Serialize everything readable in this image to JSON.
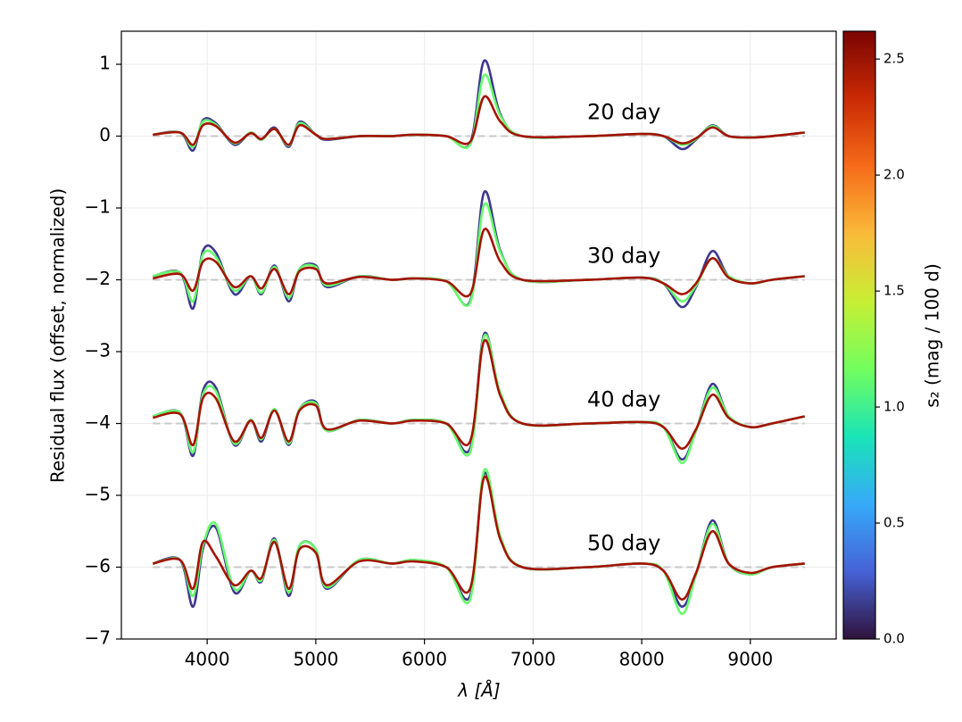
{
  "chart_data": {
    "type": "line",
    "x_label": "λ [Å]",
    "y_label": "Residual flux (offset, normalized)",
    "xlim": [
      3210,
      9790
    ],
    "ylim": [
      -7,
      1.46
    ],
    "xticks": [
      4000,
      5000,
      6000,
      7000,
      8000,
      9000
    ],
    "yticks": [
      {
        "value": 1,
        "label": "1"
      },
      {
        "value": 0,
        "label": "0"
      },
      {
        "value": -1,
        "label": "−1"
      },
      {
        "value": -2,
        "label": "−2"
      },
      {
        "value": -3,
        "label": "−3"
      },
      {
        "value": -4,
        "label": "−4"
      },
      {
        "value": -5,
        "label": "−5"
      },
      {
        "value": -6,
        "label": "−6"
      },
      {
        "value": -7,
        "label": "−7"
      }
    ],
    "grid": true,
    "baselines": [
      0,
      -2,
      -4,
      -6
    ],
    "annotations": [
      "20 day",
      "30 day",
      "40 day",
      "50 day"
    ],
    "x": [
      3500,
      3750,
      3870,
      3960,
      4080,
      4250,
      4400,
      4500,
      4620,
      4750,
      4850,
      5000,
      5100,
      5400,
      5700,
      5900,
      6200,
      6420,
      6550,
      6700,
      6900,
      7500,
      8000,
      8200,
      8370,
      8500,
      8650,
      8800,
      9000,
      9200,
      9500
    ],
    "series": [
      {
        "color": "#3e378f",
        "values": [
          0.02,
          0.05,
          -0.2,
          0.22,
          0.18,
          -0.12,
          0.05,
          -0.05,
          0.12,
          -0.15,
          0.2,
          0.02,
          -0.05,
          0.0,
          0.0,
          0.02,
          0.0,
          -0.1,
          1.05,
          0.3,
          0.0,
          0.0,
          0.03,
          0.0,
          -0.18,
          -0.05,
          0.15,
          0.0,
          -0.02,
          0.0,
          0.05
        ]
      },
      {
        "color": "#64fd6a",
        "values": [
          0.02,
          0.05,
          -0.15,
          0.2,
          0.16,
          -0.1,
          0.05,
          -0.05,
          0.1,
          -0.13,
          0.18,
          0.02,
          -0.04,
          0.0,
          0.0,
          0.02,
          0.0,
          -0.12,
          0.85,
          0.28,
          0.0,
          0.0,
          0.03,
          0.0,
          -0.12,
          -0.04,
          0.14,
          0.0,
          -0.02,
          0.0,
          0.05
        ]
      },
      {
        "color": "#a51301",
        "values": [
          0.02,
          0.05,
          -0.12,
          0.15,
          0.14,
          -0.09,
          0.04,
          -0.04,
          0.1,
          -0.12,
          0.15,
          0.02,
          -0.04,
          0.0,
          0.0,
          0.02,
          0.0,
          -0.08,
          0.55,
          0.2,
          0.0,
          0.0,
          0.03,
          0.0,
          -0.1,
          -0.03,
          0.12,
          0.0,
          -0.02,
          0.0,
          0.05
        ]
      },
      {
        "color": "#3e378f",
        "values": [
          -1.95,
          -1.9,
          -2.4,
          -1.6,
          -1.62,
          -2.2,
          -1.95,
          -2.2,
          -1.8,
          -2.3,
          -1.85,
          -1.8,
          -2.1,
          -1.95,
          -2.0,
          -1.98,
          -2.02,
          -2.3,
          -0.78,
          -1.6,
          -2.0,
          -2.0,
          -1.97,
          -2.05,
          -2.38,
          -2.1,
          -1.6,
          -1.95,
          -2.05,
          -2.0,
          -1.95
        ]
      },
      {
        "color": "#64fd6a",
        "values": [
          -1.95,
          -1.9,
          -2.3,
          -1.65,
          -1.68,
          -2.15,
          -1.95,
          -2.18,
          -1.82,
          -2.25,
          -1.85,
          -1.82,
          -2.08,
          -1.95,
          -2.0,
          -1.98,
          -2.02,
          -2.32,
          -0.95,
          -1.62,
          -2.0,
          -2.0,
          -1.97,
          -2.05,
          -2.3,
          -2.08,
          -1.7,
          -1.95,
          -2.05,
          -2.0,
          -1.95
        ]
      },
      {
        "color": "#a51301",
        "values": [
          -1.98,
          -1.92,
          -2.15,
          -1.75,
          -1.75,
          -2.1,
          -1.95,
          -2.12,
          -1.85,
          -2.2,
          -1.88,
          -1.85,
          -2.05,
          -1.96,
          -2.0,
          -1.98,
          -2.02,
          -2.2,
          -1.3,
          -1.75,
          -2.0,
          -2.0,
          -1.97,
          -2.05,
          -2.2,
          -2.05,
          -1.7,
          -1.97,
          -2.05,
          -2.0,
          -1.95
        ]
      },
      {
        "color": "#3e378f",
        "values": [
          -3.9,
          -3.85,
          -4.45,
          -3.55,
          -3.5,
          -4.3,
          -3.95,
          -4.25,
          -3.8,
          -4.3,
          -3.8,
          -3.7,
          -4.1,
          -3.95,
          -4.0,
          -3.95,
          -4.0,
          -4.35,
          -2.75,
          -3.6,
          -4.0,
          -4.0,
          -3.98,
          -4.05,
          -4.5,
          -4.1,
          -3.45,
          -3.9,
          -4.05,
          -4.0,
          -3.9
        ]
      },
      {
        "color": "#64fd6a",
        "values": [
          -3.9,
          -3.85,
          -4.4,
          -3.6,
          -3.55,
          -4.28,
          -3.95,
          -4.22,
          -3.8,
          -4.28,
          -3.8,
          -3.72,
          -4.1,
          -3.95,
          -4.0,
          -3.95,
          -4.0,
          -4.4,
          -2.78,
          -3.58,
          -4.0,
          -4.0,
          -3.98,
          -4.05,
          -4.55,
          -4.1,
          -3.5,
          -3.9,
          -4.05,
          -4.0,
          -3.9
        ]
      },
      {
        "color": "#a51301",
        "values": [
          -3.92,
          -3.87,
          -4.3,
          -3.65,
          -3.65,
          -4.25,
          -3.96,
          -4.2,
          -3.82,
          -4.25,
          -3.82,
          -3.75,
          -4.08,
          -3.96,
          -4.0,
          -3.96,
          -4.0,
          -4.25,
          -2.85,
          -3.62,
          -4.0,
          -4.0,
          -3.98,
          -4.05,
          -4.35,
          -4.08,
          -3.6,
          -3.92,
          -4.05,
          -4.0,
          -3.9
        ]
      },
      {
        "color": "#3e378f",
        "values": [
          -5.95,
          -5.9,
          -6.55,
          -5.75,
          -5.45,
          -6.35,
          -6.05,
          -6.2,
          -5.6,
          -6.4,
          -5.7,
          -5.75,
          -6.3,
          -5.9,
          -5.95,
          -5.9,
          -6.0,
          -6.4,
          -4.7,
          -5.6,
          -6.0,
          -6.0,
          -5.95,
          -6.05,
          -6.55,
          -6.1,
          -5.35,
          -5.95,
          -6.1,
          -6.0,
          -5.95
        ]
      },
      {
        "color": "#64fd6a",
        "values": [
          -5.95,
          -5.9,
          -6.4,
          -5.7,
          -5.4,
          -6.3,
          -6.05,
          -6.18,
          -5.62,
          -6.35,
          -5.7,
          -5.75,
          -6.28,
          -5.9,
          -5.95,
          -5.9,
          -6.0,
          -6.45,
          -4.65,
          -5.58,
          -6.0,
          -6.0,
          -5.95,
          -6.05,
          -6.65,
          -6.1,
          -5.4,
          -5.95,
          -6.1,
          -6.0,
          -5.95
        ]
      },
      {
        "color": "#a51301",
        "values": [
          -5.95,
          -5.9,
          -6.3,
          -5.65,
          -5.85,
          -6.25,
          -6.05,
          -6.15,
          -5.65,
          -6.3,
          -5.75,
          -5.8,
          -6.25,
          -5.92,
          -5.95,
          -5.92,
          -6.0,
          -6.3,
          -4.75,
          -5.62,
          -6.0,
          -6.0,
          -5.95,
          -6.05,
          -6.45,
          -6.08,
          -5.5,
          -5.95,
          -6.08,
          -6.0,
          -5.95
        ]
      }
    ],
    "colorbar": {
      "label": "s₂ (mag / 100 d)",
      "lim": [
        0,
        2.62
      ],
      "ticks": [
        {
          "value": 0,
          "label": "0.0"
        },
        0.5,
        {
          "value": 1,
          "label": "1.0"
        },
        1.5,
        {
          "value": 2,
          "label": "2.0"
        },
        2.5
      ],
      "colormap": [
        "#30123b",
        "#4662d7",
        "#36aaf9",
        "#1ae4b6",
        "#72fe5e",
        "#c8ef34",
        "#faba39",
        "#f66b19",
        "#ca2a04",
        "#7a0403"
      ]
    }
  }
}
